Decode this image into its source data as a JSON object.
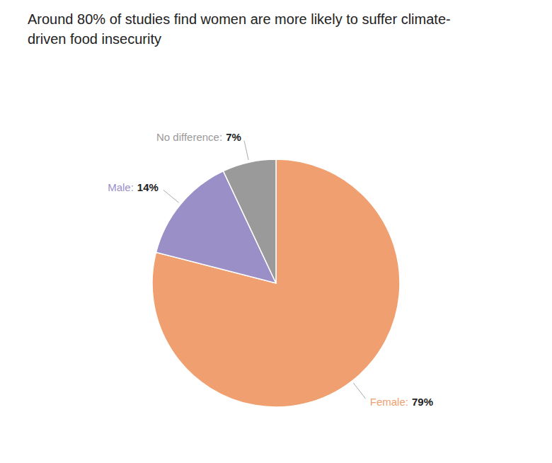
{
  "chart_data": {
    "type": "pie",
    "title": "Around 80% of studies find women are more likely to suffer climate-\ndriven food insecurity",
    "categories": [
      "Female:",
      "Male:",
      "No difference:"
    ],
    "values": [
      79,
      14,
      7
    ],
    "value_labels": [
      "79%",
      "14%",
      "7%"
    ],
    "colors": [
      "#F0A070",
      "#9B8FC7",
      "#9A9A9A"
    ],
    "data_labels": true
  }
}
